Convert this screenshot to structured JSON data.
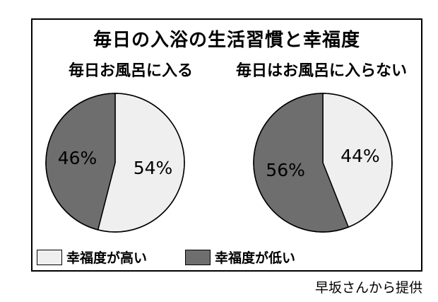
{
  "title": "毎日の入浴の生活習慣と幸福度",
  "colors": {
    "high": "#efefef",
    "low": "#6e6e6e",
    "outline": "#000000",
    "labelText": "#000000"
  },
  "legend": [
    {
      "label": "幸福度が高い",
      "color": "#efefef"
    },
    {
      "label": "幸福度が低い",
      "color": "#6e6e6e"
    }
  ],
  "credit": "早坂さんから提供",
  "chart_data": [
    {
      "type": "pie",
      "title": "毎日お風呂に入る",
      "slices": [
        {
          "label": "幸福度が高い",
          "value": 54,
          "text": "54%"
        },
        {
          "label": "幸福度が低い",
          "value": 46,
          "text": "46%"
        }
      ]
    },
    {
      "type": "pie",
      "title": "毎日はお風呂に入らない",
      "slices": [
        {
          "label": "幸福度が高い",
          "value": 44,
          "text": "44%"
        },
        {
          "label": "幸福度が低い",
          "value": 56,
          "text": "56%"
        }
      ]
    }
  ]
}
